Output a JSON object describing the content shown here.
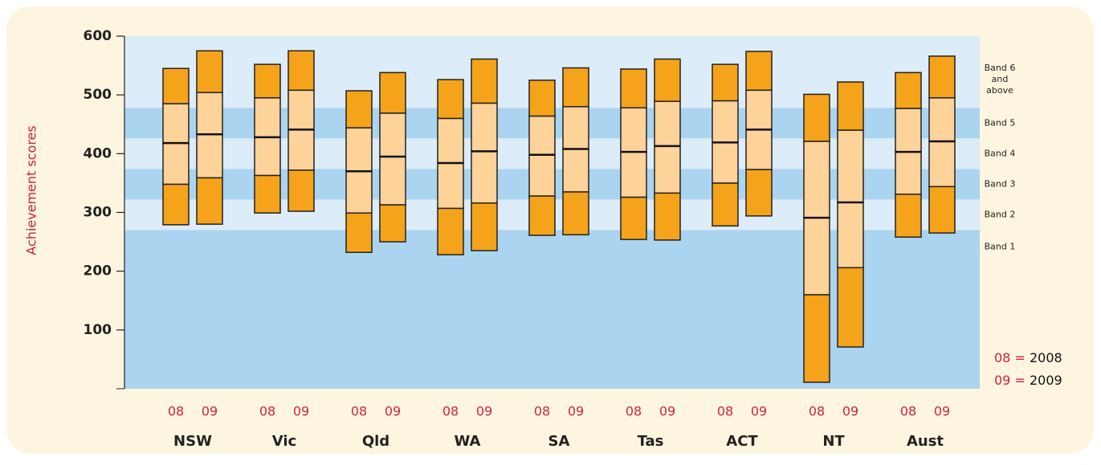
{
  "chart_data": {
    "type": "percentile-box",
    "y_label": "Achievement scores",
    "ylim": [
      0,
      600
    ],
    "yticks": [
      100,
      200,
      300,
      400,
      500,
      600
    ],
    "categories": [
      "NSW",
      "Vic",
      "Qld",
      "WA",
      "SA",
      "Tas",
      "ACT",
      "NT",
      "Aust"
    ],
    "colors": {
      "outer": "#f5a31a",
      "inner": "#fdd39a",
      "band_light": "#dcecf8",
      "band_dark": "#aad4f0"
    },
    "bands": [
      {
        "label": [
          "Band 1"
        ],
        "range": [
          0,
          270
        ],
        "shade": "dark"
      },
      {
        "label": [
          "Band 2"
        ],
        "range": [
          270,
          322
        ],
        "shade": "light"
      },
      {
        "label": [
          "Band 3"
        ],
        "range": [
          322,
          374
        ],
        "shade": "dark"
      },
      {
        "label": [
          "Band 4"
        ],
        "range": [
          374,
          426
        ],
        "shade": "light"
      },
      {
        "label": [
          "Band 5"
        ],
        "range": [
          426,
          478
        ],
        "shade": "dark"
      },
      {
        "label": [
          "Band 6",
          "and",
          "above"
        ],
        "range": [
          478,
          600
        ],
        "shade": "light"
      }
    ],
    "legend": [
      {
        "code": "08",
        "sep": "=",
        "label": "2008"
      },
      {
        "code": "09",
        "sep": "=",
        "label": "2009"
      }
    ],
    "series": [
      {
        "name": "08",
        "p5": [
          279,
          299,
          232,
          228,
          261,
          254,
          277,
          11,
          258
        ],
        "p20": [
          348,
          363,
          299,
          307,
          328,
          326,
          350,
          160,
          331
        ],
        "p50": [
          418,
          428,
          370,
          384,
          398,
          403,
          419,
          291,
          403
        ],
        "p80": [
          485,
          495,
          444,
          460,
          464,
          478,
          490,
          421,
          477
        ],
        "p95": [
          545,
          552,
          507,
          526,
          525,
          544,
          552,
          501,
          538
        ]
      },
      {
        "name": "09",
        "p5": [
          280,
          302,
          250,
          235,
          262,
          253,
          294,
          71,
          265
        ],
        "p20": [
          359,
          372,
          313,
          316,
          335,
          333,
          373,
          206,
          344
        ],
        "p50": [
          433,
          441,
          395,
          404,
          408,
          413,
          441,
          317,
          421
        ],
        "p80": [
          504,
          508,
          469,
          486,
          480,
          489,
          508,
          440,
          495
        ],
        "p95": [
          575,
          575,
          538,
          561,
          546,
          561,
          574,
          522,
          566
        ]
      }
    ]
  }
}
